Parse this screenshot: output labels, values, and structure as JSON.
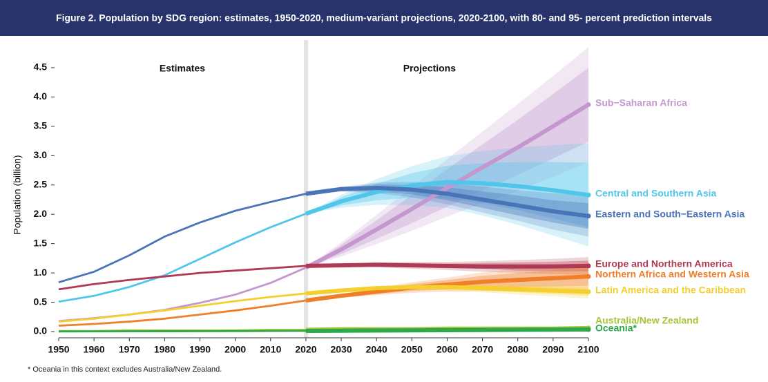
{
  "chart_data": {
    "type": "line",
    "title": "Figure 2. Population by SDG region: estimates, 1950-2020, medium-variant projections, 2020-2100, with 80- and 95- percent prediction intervals",
    "y_label": "Population (billion)",
    "annotations": [
      "Estimates",
      "Projections"
    ],
    "footnote": "* Oceania in this context excludes Australia/New Zealand.",
    "x": [
      1950,
      1960,
      1970,
      1980,
      1990,
      2000,
      2010,
      2020,
      2030,
      2040,
      2050,
      2060,
      2070,
      2080,
      2090,
      2100
    ],
    "xlim": [
      1950,
      2100
    ],
    "xticks": [
      1950,
      1960,
      1970,
      1980,
      1990,
      2000,
      2010,
      2020,
      2030,
      2040,
      2050,
      2060,
      2070,
      2080,
      2090,
      2100
    ],
    "ylim": [
      0,
      4.9
    ],
    "yticks": [
      {
        "value": 0,
        "label": "0.0"
      },
      0.5,
      {
        "value": 1,
        "label": "1.0"
      },
      1.5,
      {
        "value": 2,
        "label": "2.0"
      },
      2.5,
      {
        "value": 3,
        "label": "3.0"
      },
      3.5,
      {
        "value": 4,
        "label": "4.0"
      },
      4.5
    ],
    "series": [
      {
        "name": "Sub−Saharan Africa",
        "color": "#c497cf",
        "values": [
          0.18,
          0.23,
          0.29,
          0.37,
          0.49,
          0.63,
          0.83,
          1.09,
          1.4,
          1.74,
          2.09,
          2.45,
          2.8,
          3.14,
          3.5,
          3.87
        ],
        "lower95": [
          null,
          null,
          null,
          null,
          null,
          null,
          null,
          1.09,
          1.28,
          1.49,
          1.72,
          1.96,
          2.19,
          2.4,
          2.64,
          2.89
        ],
        "upper95": [
          null,
          null,
          null,
          null,
          null,
          null,
          null,
          1.09,
          1.52,
          1.99,
          2.46,
          2.94,
          3.41,
          3.88,
          4.36,
          4.85
        ],
        "lower80": [
          null,
          null,
          null,
          null,
          null,
          null,
          null,
          1.09,
          1.32,
          1.58,
          1.85,
          2.13,
          2.41,
          2.67,
          2.95,
          3.24
        ],
        "upper80": [
          null,
          null,
          null,
          null,
          null,
          null,
          null,
          1.09,
          1.48,
          1.9,
          2.33,
          2.77,
          3.19,
          3.61,
          4.05,
          4.5
        ]
      },
      {
        "name": "Central and Southern Asia",
        "color": "#4fc6ea",
        "values": [
          0.51,
          0.61,
          0.76,
          0.96,
          1.24,
          1.52,
          1.78,
          2.01,
          2.22,
          2.38,
          2.49,
          2.55,
          2.53,
          2.48,
          2.41,
          2.33
        ],
        "lower95": [
          null,
          null,
          null,
          null,
          null,
          null,
          null,
          2.01,
          2.11,
          2.16,
          2.16,
          2.11,
          1.98,
          1.82,
          1.64,
          1.45
        ],
        "upper95": [
          null,
          null,
          null,
          null,
          null,
          null,
          null,
          2.01,
          2.33,
          2.6,
          2.82,
          2.99,
          3.08,
          3.14,
          3.18,
          3.21
        ],
        "lower80": [
          null,
          null,
          null,
          null,
          null,
          null,
          null,
          2.01,
          2.15,
          2.24,
          2.28,
          2.27,
          2.19,
          2.07,
          1.93,
          1.78
        ],
        "upper80": [
          null,
          null,
          null,
          null,
          null,
          null,
          null,
          2.01,
          2.29,
          2.52,
          2.7,
          2.83,
          2.87,
          2.89,
          2.89,
          2.88
        ]
      },
      {
        "name": "Eastern and South−Eastern Asia",
        "color": "#4a74b8",
        "values": [
          0.84,
          1.02,
          1.3,
          1.62,
          1.86,
          2.06,
          2.21,
          2.35,
          2.43,
          2.45,
          2.42,
          2.35,
          2.25,
          2.15,
          2.05,
          1.97
        ],
        "lower95": [
          null,
          null,
          null,
          null,
          null,
          null,
          null,
          2.35,
          2.39,
          2.36,
          2.29,
          2.17,
          2.03,
          1.89,
          1.74,
          1.62
        ],
        "upper95": [
          null,
          null,
          null,
          null,
          null,
          null,
          null,
          2.35,
          2.47,
          2.54,
          2.55,
          2.53,
          2.47,
          2.41,
          2.36,
          2.32
        ],
        "lower80": [
          null,
          null,
          null,
          null,
          null,
          null,
          null,
          2.35,
          2.4,
          2.39,
          2.34,
          2.24,
          2.11,
          1.98,
          1.86,
          1.75
        ],
        "upper80": [
          null,
          null,
          null,
          null,
          null,
          null,
          null,
          2.35,
          2.46,
          2.51,
          2.5,
          2.46,
          2.39,
          2.32,
          2.24,
          2.19
        ]
      },
      {
        "name": "Europe and Northern America",
        "color": "#b03a55",
        "values": [
          0.72,
          0.81,
          0.88,
          0.94,
          1.0,
          1.04,
          1.08,
          1.12,
          1.13,
          1.14,
          1.13,
          1.12,
          1.11,
          1.11,
          1.11,
          1.12
        ],
        "lower95": [
          null,
          null,
          null,
          null,
          null,
          null,
          null,
          1.12,
          1.11,
          1.1,
          1.07,
          1.05,
          1.02,
          1.0,
          0.98,
          0.97
        ],
        "upper95": [
          null,
          null,
          null,
          null,
          null,
          null,
          null,
          1.12,
          1.15,
          1.18,
          1.19,
          1.19,
          1.2,
          1.22,
          1.24,
          1.27
        ],
        "lower80": [
          null,
          null,
          null,
          null,
          null,
          null,
          null,
          1.12,
          1.12,
          1.12,
          1.1,
          1.08,
          1.07,
          1.04,
          1.03,
          1.03
        ],
        "upper80": [
          null,
          null,
          null,
          null,
          null,
          null,
          null,
          1.12,
          1.14,
          1.16,
          1.16,
          1.16,
          1.17,
          1.18,
          1.19,
          1.21
        ]
      },
      {
        "name": "Northern Africa and Western Asia",
        "color": "#f07f2a",
        "values": [
          0.1,
          0.13,
          0.17,
          0.22,
          0.29,
          0.36,
          0.44,
          0.53,
          0.61,
          0.68,
          0.75,
          0.8,
          0.85,
          0.88,
          0.91,
          0.94
        ],
        "lower95": [
          null,
          null,
          null,
          null,
          null,
          null,
          null,
          0.53,
          0.58,
          0.62,
          0.66,
          0.68,
          0.69,
          0.69,
          0.69,
          0.69
        ],
        "upper95": [
          null,
          null,
          null,
          null,
          null,
          null,
          null,
          0.53,
          0.64,
          0.74,
          0.84,
          0.92,
          1.01,
          1.07,
          1.13,
          1.19
        ],
        "lower80": [
          null,
          null,
          null,
          null,
          null,
          null,
          null,
          0.53,
          0.59,
          0.64,
          0.69,
          0.72,
          0.75,
          0.76,
          0.77,
          0.78
        ],
        "upper80": [
          null,
          null,
          null,
          null,
          null,
          null,
          null,
          0.53,
          0.63,
          0.72,
          0.81,
          0.88,
          0.95,
          1.0,
          1.05,
          1.1
        ]
      },
      {
        "name": "Latin America and the Caribbean",
        "color": "#f4cf2e",
        "values": [
          0.17,
          0.22,
          0.29,
          0.36,
          0.44,
          0.52,
          0.59,
          0.65,
          0.7,
          0.74,
          0.76,
          0.76,
          0.74,
          0.72,
          0.7,
          0.68
        ],
        "lower95": [
          null,
          null,
          null,
          null,
          null,
          null,
          null,
          0.65,
          0.69,
          0.71,
          0.72,
          0.7,
          0.67,
          0.63,
          0.6,
          0.56
        ],
        "upper95": [
          null,
          null,
          null,
          null,
          null,
          null,
          null,
          0.65,
          0.71,
          0.77,
          0.8,
          0.82,
          0.81,
          0.81,
          0.8,
          0.8
        ],
        "lower80": [
          null,
          null,
          null,
          null,
          null,
          null,
          null,
          0.65,
          0.69,
          0.72,
          0.73,
          0.73,
          0.7,
          0.67,
          0.64,
          0.61
        ],
        "upper80": [
          null,
          null,
          null,
          null,
          null,
          null,
          null,
          0.65,
          0.71,
          0.76,
          0.79,
          0.79,
          0.78,
          0.77,
          0.76,
          0.75
        ]
      },
      {
        "name": "Australia/New Zealand",
        "color": "#a4c639",
        "values": [
          0.01,
          0.01,
          0.02,
          0.02,
          0.02,
          0.02,
          0.03,
          0.03,
          0.04,
          0.04,
          0.04,
          0.05,
          0.05,
          0.05,
          0.05,
          0.06
        ]
      },
      {
        "name": "Oceania*",
        "color": "#2ea84a",
        "values": [
          0.002,
          0.003,
          0.004,
          0.005,
          0.006,
          0.008,
          0.01,
          0.012,
          0.015,
          0.018,
          0.021,
          0.024,
          0.027,
          0.03,
          0.032,
          0.035
        ]
      }
    ]
  }
}
